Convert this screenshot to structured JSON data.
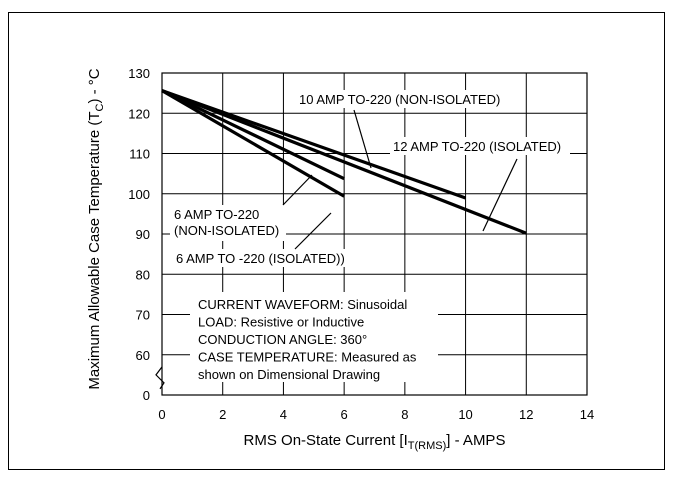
{
  "chart_data": {
    "type": "line",
    "title": "",
    "xlabel": {
      "main": "RMS On-State Current [I",
      "sub": "T(RMS)",
      "tail": "] - AMPS"
    },
    "ylabel": {
      "main": "Maximum Allowable Case Temperature (T",
      "sub": "C",
      "tail": ") - °C"
    },
    "xlim": [
      0,
      14
    ],
    "y_break": {
      "below": 0,
      "above": 50
    },
    "ylim": [
      50,
      130
    ],
    "x_ticks": [
      "0",
      "2",
      "4",
      "6",
      "8",
      "10",
      "12",
      "14"
    ],
    "y_ticks": [
      "0",
      "60",
      "70",
      "80",
      "90",
      "100",
      "110",
      "120",
      "130"
    ],
    "grid": true,
    "series": [
      {
        "name": "10 AMP TO-220 (NON-ISOLATED)",
        "x": [
          0,
          10
        ],
        "y": [
          125,
          94.5
        ]
      },
      {
        "name": "12 AMP TO-220 (ISOLATED)",
        "x": [
          0,
          12
        ],
        "y": [
          125,
          84.5
        ]
      },
      {
        "name": "6 AMP TO-220 (NON-ISOLATED)",
        "x": [
          0,
          6
        ],
        "y": [
          125,
          100
        ]
      },
      {
        "name": "6 AMP TO -220 (ISOLATED))",
        "x": [
          0,
          6
        ],
        "y": [
          125,
          95
        ]
      }
    ],
    "annotations": {
      "label_10a": "10 AMP TO-220 (NON-ISOLATED)",
      "label_12a": "12 AMP TO-220 (ISOLATED)",
      "label_6a_line1": "6 AMP TO-220",
      "label_6a_line2": "(NON-ISOLATED)",
      "label_6a_iso": "6 AMP TO -220 (ISOLATED))",
      "notes": [
        "CURRENT WAVEFORM: Sinusoidal",
        "LOAD: Resistive or Inductive",
        "CONDUCTION ANGLE: 360°",
        "CASE TEMPERATURE: Measured as",
        "shown on Dimensional Drawing"
      ]
    }
  }
}
